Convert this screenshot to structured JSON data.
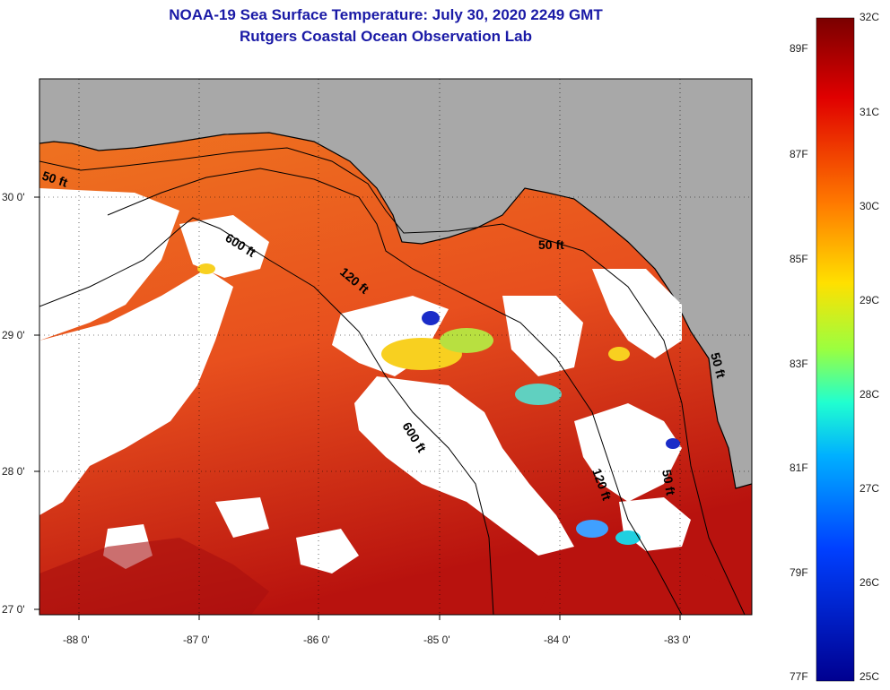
{
  "title": "NOAA-19 Sea Surface Temperature:  July 30, 2020 2249 GMT",
  "subtitle": "Rutgers Coastal Ocean Observation Lab",
  "lat_labels": [
    "30 0'",
    "29 0'",
    "28 0'",
    "27 0'"
  ],
  "lon_labels": [
    "-88 0'",
    "-87 0'",
    "-86 0'",
    "-85 0'",
    "-84 0'",
    "-83 0'"
  ],
  "contour_labels": [
    "50 ft",
    "600 ft",
    "120 ft",
    "50 ft",
    "600 ft",
    "120 ft",
    "50 ft",
    "50 ft"
  ],
  "colorbar": {
    "celsius": [
      "32C",
      "31C",
      "30C",
      "29C",
      "28C",
      "27C",
      "26C",
      "25C"
    ],
    "fahrenheit": [
      "89F",
      "87F",
      "85F",
      "83F",
      "81F",
      "79F",
      "77F"
    ]
  },
  "colors": {
    "land": "#a8a8a8",
    "cloud": "#ffffff",
    "title": "#1a1aa6",
    "warm": "#e8401a",
    "hot": "#a80f0f",
    "cool": "#1a2cc8"
  }
}
